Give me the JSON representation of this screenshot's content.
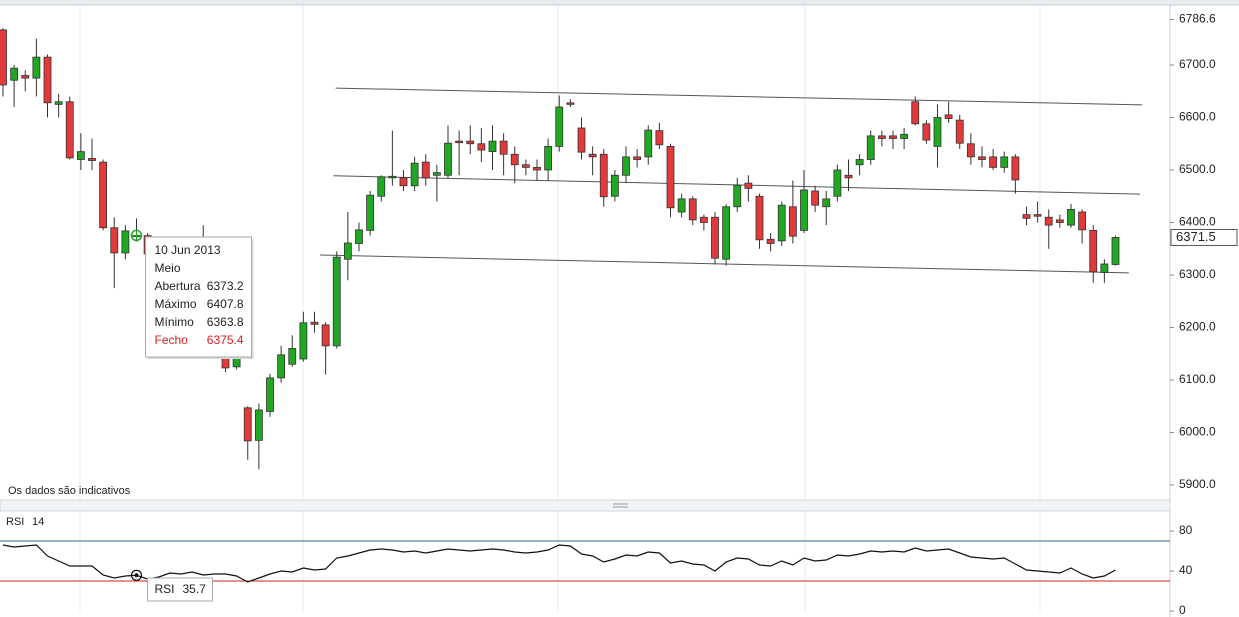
{
  "chart_data": [
    {
      "type": "candlestick",
      "dates": [
        null,
        null,
        null,
        null,
        null,
        null,
        null,
        null,
        null,
        null,
        null,
        null,
        "10 Jun 2013",
        null,
        null,
        null,
        null,
        null,
        null,
        null,
        null,
        null,
        null,
        null,
        null,
        null,
        null,
        null,
        null,
        null,
        null,
        null,
        null,
        null,
        null,
        null,
        null,
        null,
        null,
        null,
        null,
        null,
        null,
        null,
        null,
        null,
        null,
        null,
        null,
        null,
        null,
        null,
        null,
        null,
        null,
        null,
        null,
        null,
        null,
        null,
        null,
        null,
        null,
        null,
        null,
        null,
        null,
        null,
        null,
        null,
        null,
        null,
        null,
        null,
        null,
        null,
        null,
        null,
        null,
        null,
        null,
        null,
        null,
        null,
        null,
        null,
        null,
        null,
        null,
        null,
        null,
        null,
        null,
        null,
        null,
        null,
        null,
        null,
        null,
        null,
        null
      ],
      "open": [
        6767,
        6671,
        6680,
        6675,
        6715,
        6625,
        6630,
        6520,
        6522,
        6515,
        6390,
        6342,
        6373.2,
        6375,
        6340,
        6300,
        6320,
        6270,
        6230,
        6260,
        6176,
        6125,
        6047,
        5985,
        6040,
        6104,
        6130,
        6140,
        6210,
        6205,
        6165,
        6330,
        6360,
        6385,
        6450,
        6485,
        6485,
        6470,
        6515,
        6490,
        6490,
        6555,
        6555,
        6550,
        6535,
        6555,
        6530,
        6510,
        6505,
        6500,
        6545,
        6628,
        6580,
        6530,
        6530,
        6450,
        6490,
        6525,
        6525,
        6575,
        6545,
        6420,
        6445,
        6410,
        6410,
        6330,
        6430,
        6475,
        6450,
        6368,
        6365,
        6430,
        6385,
        6460,
        6430,
        6450,
        6490,
        6510,
        6520,
        6565,
        6565,
        6560,
        6630,
        6588,
        6545,
        6605,
        6595,
        6550,
        6525,
        6525,
        6505,
        6525,
        6415,
        6415,
        6410,
        6405,
        6395,
        6420,
        6385,
        6305,
        6320
      ],
      "high": [
        6770,
        6700,
        6690,
        6750,
        6720,
        6645,
        6640,
        6570,
        6560,
        6520,
        6410,
        6395,
        6407.8,
        6380,
        6350,
        6330,
        6325,
        6280,
        6395,
        6265,
        6180,
        6160,
        6050,
        6055,
        6112,
        6165,
        6185,
        6230,
        6230,
        6210,
        6345,
        6420,
        6400,
        6460,
        6490,
        6575,
        6500,
        6525,
        6530,
        6510,
        6585,
        6575,
        6585,
        6580,
        6585,
        6570,
        6545,
        6520,
        6520,
        6560,
        6642,
        6635,
        6600,
        6545,
        6540,
        6500,
        6545,
        6540,
        6585,
        6590,
        6550,
        6455,
        6450,
        6415,
        6420,
        6435,
        6485,
        6490,
        6455,
        6380,
        6440,
        6480,
        6500,
        6470,
        6460,
        6510,
        6520,
        6530,
        6575,
        6575,
        6575,
        6580,
        6640,
        6595,
        6625,
        6630,
        6605,
        6570,
        6545,
        6540,
        6535,
        6530,
        6430,
        6440,
        6425,
        6415,
        6435,
        6425,
        6395,
        6330,
        6375
      ],
      "low": [
        6640,
        6620,
        6650,
        6640,
        6600,
        6600,
        6520,
        6500,
        6500,
        6385,
        6275,
        6330,
        6363.8,
        6330,
        6290,
        6295,
        6260,
        6220,
        6225,
        6175,
        6115,
        6120,
        5948,
        5930,
        6030,
        6095,
        6125,
        6135,
        6190,
        6110,
        6160,
        6290,
        6345,
        6375,
        6440,
        6470,
        6460,
        6460,
        6470,
        6440,
        6485,
        6490,
        6530,
        6515,
        6500,
        6490,
        6475,
        6490,
        6480,
        6480,
        6535,
        6620,
        6520,
        6490,
        6430,
        6440,
        6475,
        6505,
        6510,
        6540,
        6410,
        6410,
        6395,
        6385,
        6320,
        6318,
        6420,
        6440,
        6350,
        6345,
        6355,
        6360,
        6380,
        6420,
        6395,
        6440,
        6460,
        6490,
        6510,
        6545,
        6540,
        6540,
        6585,
        6550,
        6505,
        6590,
        6540,
        6510,
        6505,
        6500,
        6495,
        6455,
        6395,
        6400,
        6350,
        6390,
        6390,
        6360,
        6285,
        6285,
        6318
      ],
      "close": [
        6662,
        6694,
        6675,
        6715,
        6628,
        6630,
        6523,
        6535,
        6518,
        6390,
        6342,
        6384,
        6375.4,
        6340,
        6300,
        6320,
        6270,
        6230,
        6260,
        6180,
        6123,
        6148,
        5984,
        6043,
        6104,
        6148,
        6160,
        6209,
        6206,
        6165,
        6334,
        6361,
        6386,
        6452,
        6487,
        6488,
        6470,
        6513,
        6485,
        6495,
        6551,
        6552,
        6550,
        6538,
        6555,
        6530,
        6510,
        6505,
        6500,
        6545,
        6620,
        6625,
        6534,
        6525,
        6449,
        6490,
        6525,
        6520,
        6576,
        6548,
        6428,
        6445,
        6405,
        6400,
        6332,
        6430,
        6471,
        6465,
        6367,
        6360,
        6433,
        6374,
        6462,
        6433,
        6445,
        6500,
        6485,
        6520,
        6565,
        6560,
        6560,
        6568,
        6588,
        6557,
        6600,
        6598,
        6551,
        6525,
        6520,
        6505,
        6525,
        6481,
        6408,
        6412,
        6395,
        6400,
        6425,
        6386,
        6306,
        6321,
        6371.5
      ],
      "up_color": "#21a821",
      "down_color": "#e23a3a",
      "xlim": [
        -0.27,
        104.9
      ],
      "ylim": [
        5871.4,
        6814.3
      ],
      "yticks": [
        6786.6,
        {
          "value": 6700,
          "label": "6700.0"
        },
        {
          "value": 6600,
          "label": "6600.0"
        },
        {
          "value": 6500,
          "label": "6500.0"
        },
        {
          "value": 6400,
          "label": "6400.0"
        },
        {
          "value": 6300,
          "label": "6300.0"
        },
        {
          "value": 6200,
          "label": "6200.0"
        },
        {
          "value": 6100,
          "label": "6100.0"
        },
        {
          "value": 6000,
          "label": "6000.0"
        },
        {
          "value": 5900,
          "label": "5900.0"
        }
      ],
      "trendlines": [
        {
          "x": [
            29.9,
            102.4
          ],
          "y": [
            6656,
            6624
          ]
        },
        {
          "x": [
            29.7,
            102.2
          ],
          "y": [
            6489,
            6454
          ]
        },
        {
          "x": [
            28.5,
            101.2
          ],
          "y": [
            6338,
            6304
          ]
        }
      ],
      "tooltip": {
        "mode": "Meio",
        "labels": [
          "Abertura",
          "Máximo",
          "Mínimo",
          "Fecho"
        ]
      },
      "note": "Os dados são indicativos"
    },
    {
      "type": "line",
      "name": "RSI",
      "period": 14,
      "color": "#111111",
      "values": [
        66,
        64,
        65,
        66,
        55,
        50,
        45,
        45,
        45,
        36,
        33,
        35,
        35.7,
        32,
        34,
        38,
        37,
        39,
        36,
        37,
        37,
        35,
        29,
        33,
        37,
        40,
        39,
        43,
        41,
        42,
        53,
        55,
        58,
        61,
        62,
        61,
        59,
        60,
        58,
        60,
        62,
        61,
        60,
        61,
        62,
        61,
        59,
        58,
        59,
        61,
        66,
        65,
        57,
        55,
        49,
        52,
        56,
        55,
        59,
        58,
        48,
        50,
        47,
        46,
        40,
        49,
        53,
        52,
        46,
        45,
        50,
        46,
        53,
        50,
        51,
        56,
        55,
        57,
        60,
        59,
        60,
        59,
        63,
        60,
        61,
        62,
        58,
        54,
        53,
        52,
        53,
        47,
        41,
        40,
        39,
        38,
        43,
        37,
        33,
        35,
        41
      ],
      "ylim": [
        -1,
        99
      ],
      "yticks": [
        0,
        40,
        80
      ],
      "levels": [
        {
          "value": 70,
          "color": "#2d6f86"
        },
        {
          "value": 30,
          "color": "#cc2020"
        }
      ]
    }
  ]
}
